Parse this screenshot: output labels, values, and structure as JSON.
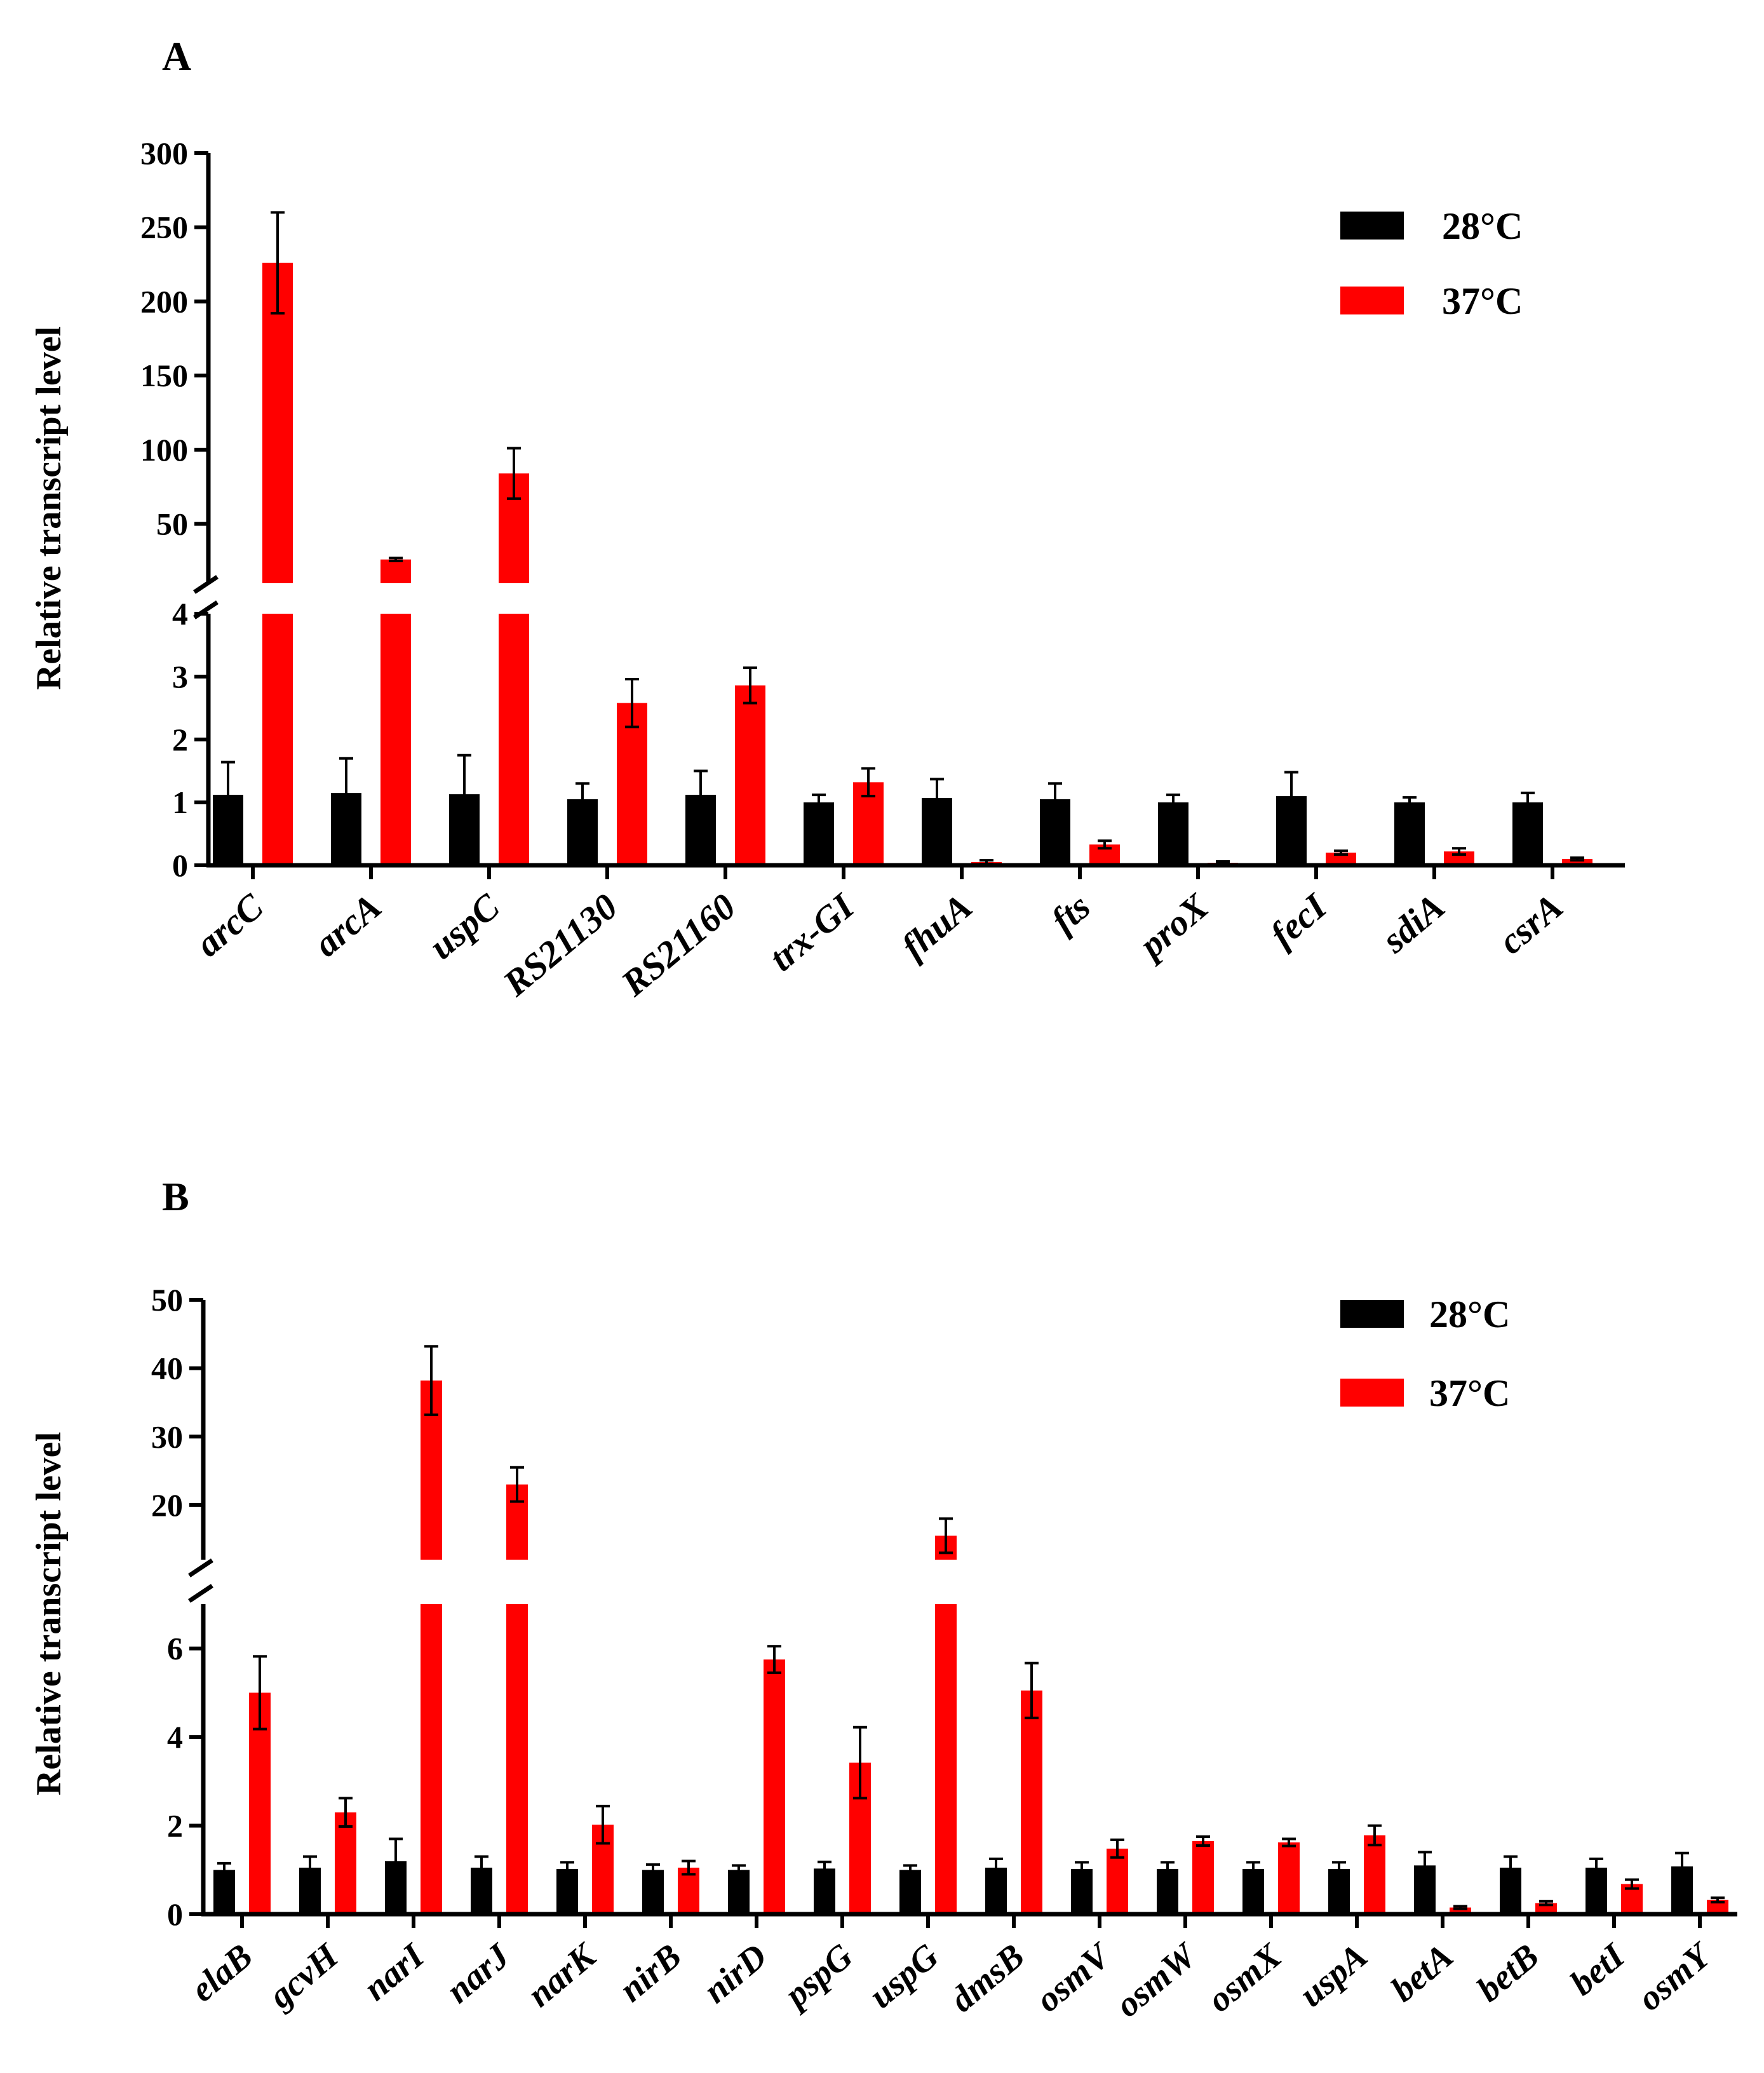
{
  "colors": {
    "c28": "#000000",
    "c37": "#ff0000",
    "axis": "#000000"
  },
  "chart_data": [
    {
      "panel_label": "A",
      "type": "bar",
      "ylabel": "Relative transcript level",
      "legend": [
        "28°C",
        "37°C"
      ],
      "legend_position": "top-right",
      "axis_break": true,
      "lower_segment": {
        "range": [
          0,
          4
        ],
        "ticks": [
          "0",
          "1",
          "2",
          "3",
          "4"
        ]
      },
      "upper_segment": {
        "range": [
          10,
          300
        ],
        "ticks": [
          "50",
          "100",
          "150",
          "200",
          "250",
          "300"
        ]
      },
      "categories": [
        "arcC",
        "arcA",
        "uspC",
        "RS21130",
        "RS21160",
        "trx-GI",
        "fhuA",
        "fts",
        "proX",
        "fecI",
        "sdiA",
        "csrA"
      ],
      "series": [
        {
          "name": "28°C",
          "values": [
            1.12,
            1.15,
            1.13,
            1.05,
            1.12,
            1.0,
            1.07,
            1.05,
            1.0,
            1.1,
            1.0,
            1.0
          ],
          "errors": [
            0.52,
            0.55,
            0.62,
            0.25,
            0.38,
            0.12,
            0.3,
            0.25,
            0.12,
            0.38,
            0.08,
            0.15
          ]
        },
        {
          "name": "37°C",
          "values": [
            226,
            26,
            84,
            2.58,
            2.86,
            1.32,
            0.05,
            0.33,
            0.04,
            0.2,
            0.22,
            0.1
          ],
          "errors": [
            34,
            1,
            17,
            0.38,
            0.28,
            0.22,
            0.03,
            0.06,
            0.02,
            0.03,
            0.05,
            0.02
          ]
        }
      ]
    },
    {
      "panel_label": "B",
      "type": "bar",
      "ylabel": "Relative transcript level",
      "legend": [
        "28°C",
        "37°C"
      ],
      "legend_position": "top-right",
      "axis_break": true,
      "lower_segment": {
        "range": [
          0,
          7
        ],
        "ticks": [
          "0",
          "2",
          "4",
          "6"
        ]
      },
      "upper_segment": {
        "range": [
          12,
          50
        ],
        "ticks": [
          "20",
          "30",
          "40",
          "50"
        ]
      },
      "categories": [
        "elaB",
        "gcvH",
        "narI",
        "narJ",
        "narK",
        "nirB",
        "nirD",
        "pspG",
        "uspG",
        "dmsB",
        "osmV",
        "osmW",
        "osmX",
        "uspA",
        "betA",
        "betB",
        "betI",
        "osmY"
      ],
      "series": [
        {
          "name": "28°C",
          "values": [
            1.0,
            1.05,
            1.2,
            1.05,
            1.02,
            1.0,
            1.0,
            1.03,
            1.0,
            1.05,
            1.02,
            1.02,
            1.02,
            1.02,
            1.1,
            1.05,
            1.05,
            1.08
          ],
          "errors": [
            0.15,
            0.25,
            0.5,
            0.25,
            0.15,
            0.12,
            0.1,
            0.15,
            0.1,
            0.2,
            0.15,
            0.15,
            0.15,
            0.15,
            0.3,
            0.25,
            0.2,
            0.3
          ]
        },
        {
          "name": "37°C",
          "values": [
            5.0,
            2.3,
            38.2,
            23.0,
            2.02,
            1.05,
            5.75,
            3.42,
            15.5,
            5.05,
            1.48,
            1.65,
            1.62,
            1.78,
            0.15,
            0.25,
            0.68,
            0.32
          ],
          "errors": [
            0.82,
            0.32,
            5,
            2.5,
            0.42,
            0.15,
            0.3,
            0.8,
            2.5,
            0.62,
            0.2,
            0.1,
            0.08,
            0.22,
            0.03,
            0.04,
            0.1,
            0.05
          ]
        }
      ]
    }
  ]
}
